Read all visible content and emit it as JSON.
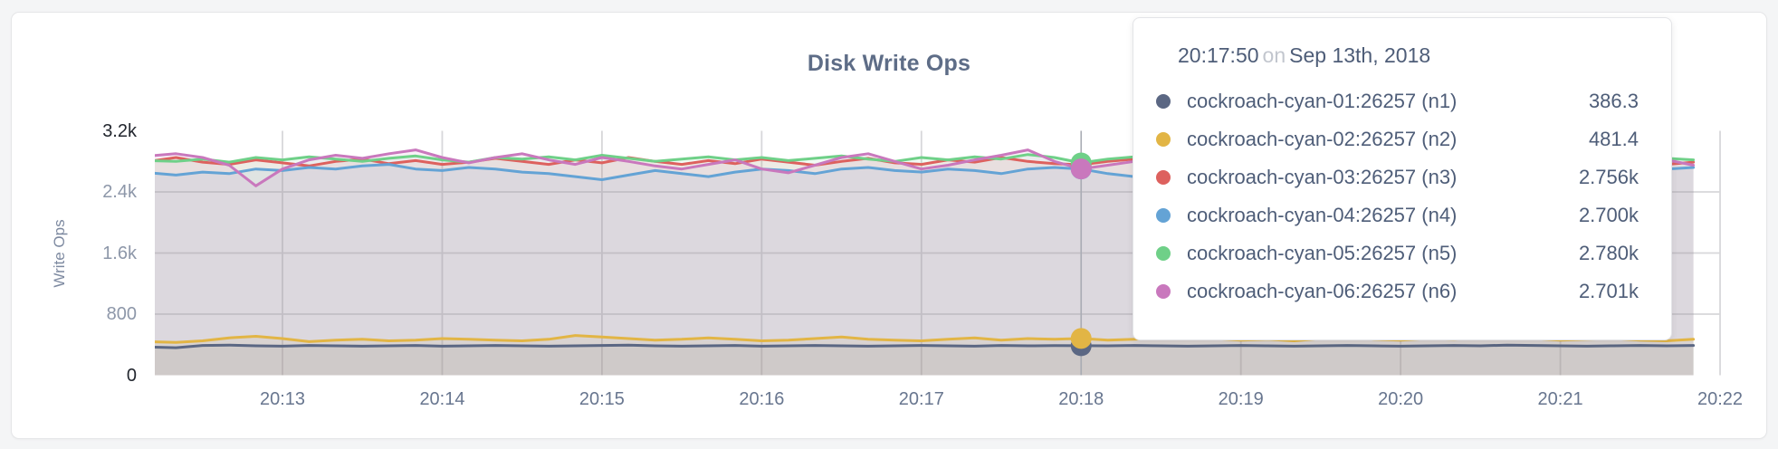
{
  "chart_data": {
    "type": "line",
    "title": "Disk Write Ops",
    "ylabel": "Write Ops",
    "ylim": [
      0,
      3200
    ],
    "grid": true,
    "legend_position": "tooltip",
    "y_ticks": [
      {
        "label": "0",
        "value": 0,
        "strong": true
      },
      {
        "label": "800",
        "value": 800,
        "strong": false
      },
      {
        "label": "1.6k",
        "value": 1600,
        "strong": false
      },
      {
        "label": "2.4k",
        "value": 2400,
        "strong": false
      },
      {
        "label": "3.2k",
        "value": 3200,
        "strong": true
      }
    ],
    "grid_y_values": [
      800,
      1600,
      2400
    ],
    "x_ticks": [
      "20:13",
      "20:14",
      "20:15",
      "20:16",
      "20:17",
      "20:18",
      "20:19",
      "20:20",
      "20:21",
      "20:22"
    ],
    "x_first_tick_point": 5,
    "x_tick_point_step": 6,
    "hover_index": 35,
    "hover_time": "20:17:50",
    "series": [
      {
        "id": "n1",
        "name": "cockroach-cyan-01:26257 (n1)",
        "color": "#5b6783",
        "values": [
          370,
          360,
          390,
          395,
          385,
          380,
          390,
          385,
          380,
          385,
          390,
          380,
          385,
          390,
          385,
          380,
          385,
          390,
          395,
          385,
          380,
          385,
          390,
          380,
          385,
          390,
          385,
          380,
          385,
          390,
          385,
          380,
          390,
          385,
          388,
          386,
          385,
          390,
          385,
          380,
          385,
          390,
          385,
          380,
          385,
          390,
          385,
          380,
          385,
          390,
          385,
          395,
          390,
          385,
          380,
          385,
          390,
          385,
          390
        ]
      },
      {
        "id": "n2",
        "name": "cockroach-cyan-02:26257 (n2)",
        "color": "#e2b545",
        "values": [
          440,
          430,
          450,
          490,
          510,
          480,
          440,
          460,
          470,
          450,
          460,
          480,
          470,
          460,
          450,
          470,
          520,
          500,
          480,
          460,
          470,
          490,
          470,
          450,
          460,
          480,
          500,
          470,
          460,
          450,
          470,
          490,
          460,
          480,
          470,
          481,
          460,
          470,
          490,
          510,
          480,
          460,
          470,
          450,
          480,
          500,
          470,
          460,
          480,
          470,
          490,
          510,
          480,
          460,
          470,
          480,
          460,
          450,
          470
        ]
      },
      {
        "id": "n3",
        "name": "cockroach-cyan-03:26257 (n3)",
        "color": "#dd615e",
        "values": [
          2800,
          2850,
          2790,
          2760,
          2820,
          2780,
          2740,
          2800,
          2830,
          2770,
          2810,
          2760,
          2790,
          2840,
          2800,
          2760,
          2820,
          2780,
          2850,
          2800,
          2760,
          2810,
          2770,
          2830,
          2790,
          2750,
          2800,
          2840,
          2780,
          2760,
          2820,
          2790,
          2850,
          2800,
          2770,
          2756,
          2800,
          2830,
          2780,
          2810,
          2760,
          2790,
          2820,
          2770,
          2800,
          2840,
          2780,
          2750,
          2810,
          2790,
          2830,
          2760,
          2800,
          2770,
          2820,
          2780,
          2800,
          2760,
          2790
        ]
      },
      {
        "id": "n4",
        "name": "cockroach-cyan-04:26257 (n4)",
        "color": "#64a3d5",
        "values": [
          2650,
          2620,
          2660,
          2640,
          2700,
          2680,
          2720,
          2700,
          2740,
          2760,
          2700,
          2680,
          2720,
          2700,
          2660,
          2640,
          2600,
          2560,
          2620,
          2680,
          2640,
          2600,
          2660,
          2700,
          2680,
          2640,
          2700,
          2720,
          2680,
          2660,
          2700,
          2680,
          2640,
          2700,
          2720,
          2700,
          2640,
          2600,
          2620,
          2680,
          2700,
          2660,
          2700,
          2740,
          2700,
          2660,
          2700,
          2720,
          2680,
          2700,
          2660,
          2700,
          2740,
          2700,
          2680,
          2700,
          2660,
          2700,
          2720
        ]
      },
      {
        "id": "n5",
        "name": "cockroach-cyan-05:26257 (n5)",
        "color": "#6fd088",
        "values": [
          2810,
          2800,
          2830,
          2790,
          2850,
          2820,
          2860,
          2830,
          2800,
          2840,
          2870,
          2820,
          2790,
          2850,
          2830,
          2860,
          2820,
          2880,
          2840,
          2800,
          2830,
          2860,
          2820,
          2850,
          2810,
          2840,
          2870,
          2830,
          2800,
          2850,
          2820,
          2860,
          2830,
          2890,
          2850,
          2780,
          2830,
          2860,
          2820,
          2850,
          2880,
          2830,
          2800,
          2840,
          2860,
          2820,
          2850,
          2810,
          2840,
          2870,
          2830,
          2800,
          2850,
          2820,
          2860,
          2830,
          2800,
          2840,
          2820
        ]
      },
      {
        "id": "n6",
        "name": "cockroach-cyan-06:26257 (n6)",
        "color": "#c978bd",
        "values": [
          2870,
          2900,
          2850,
          2750,
          2480,
          2700,
          2820,
          2880,
          2840,
          2900,
          2950,
          2850,
          2780,
          2850,
          2900,
          2820,
          2760,
          2850,
          2800,
          2740,
          2700,
          2760,
          2820,
          2700,
          2650,
          2750,
          2850,
          2900,
          2800,
          2700,
          2750,
          2820,
          2880,
          2950,
          2800,
          2701,
          2750,
          2800,
          2700,
          2650,
          2720,
          2780,
          2850,
          2700,
          2600,
          2700,
          2780,
          2850,
          2920,
          2800,
          2700,
          2650,
          2750,
          2850,
          2780,
          2700,
          2760,
          2820,
          2750
        ]
      }
    ]
  },
  "tooltip": {
    "time": "20:17:50",
    "conjunction": "on",
    "date": "Sep 13th, 2018",
    "rows": [
      {
        "label": "cockroach-cyan-01:26257 (n1)",
        "value": "386.3",
        "color": "#5b6783"
      },
      {
        "label": "cockroach-cyan-02:26257 (n2)",
        "value": "481.4",
        "color": "#e2b545"
      },
      {
        "label": "cockroach-cyan-03:26257 (n3)",
        "value": "2.756k",
        "color": "#dd615e"
      },
      {
        "label": "cockroach-cyan-04:26257 (n4)",
        "value": "2.700k",
        "color": "#64a3d5"
      },
      {
        "label": "cockroach-cyan-05:26257 (n5)",
        "value": "2.780k",
        "color": "#6fd088"
      },
      {
        "label": "cockroach-cyan-06:26257 (n6)",
        "value": "2.701k",
        "color": "#c978bd"
      }
    ]
  },
  "style": {
    "grid_color": "#d7d7da",
    "hover_line_color": "#a9adb5",
    "fill_opacity": 0.1
  }
}
